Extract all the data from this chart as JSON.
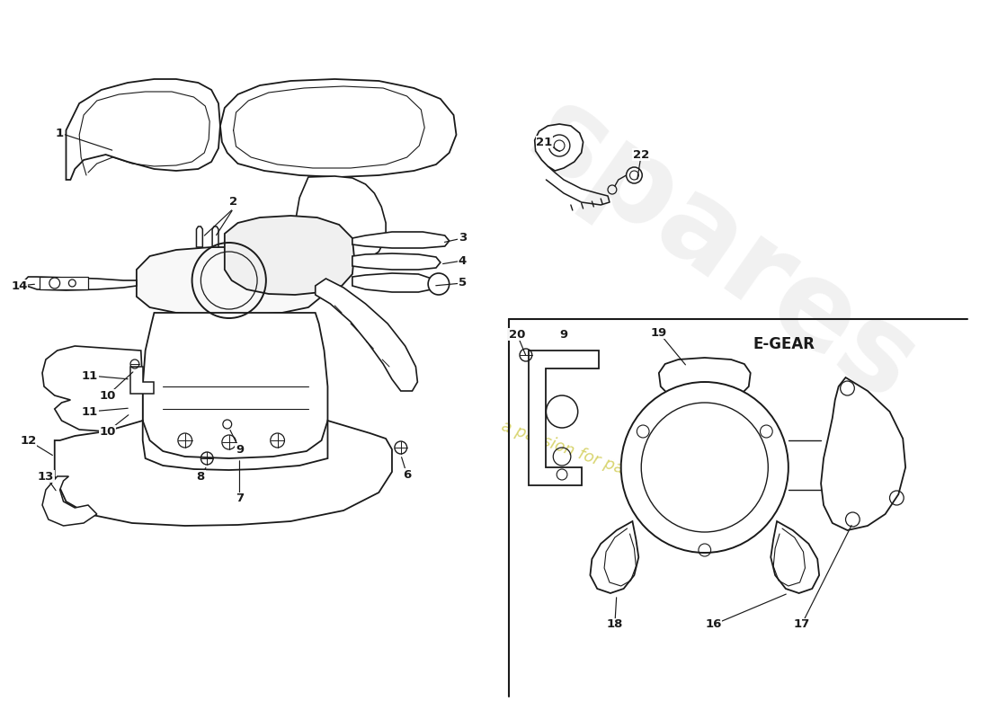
{
  "bg_color": "#ffffff",
  "line_color": "#1a1a1a",
  "wm_yellow": "#d4d060",
  "wm_gray": "#c0c0c0",
  "egear_label": "E-GEAR"
}
